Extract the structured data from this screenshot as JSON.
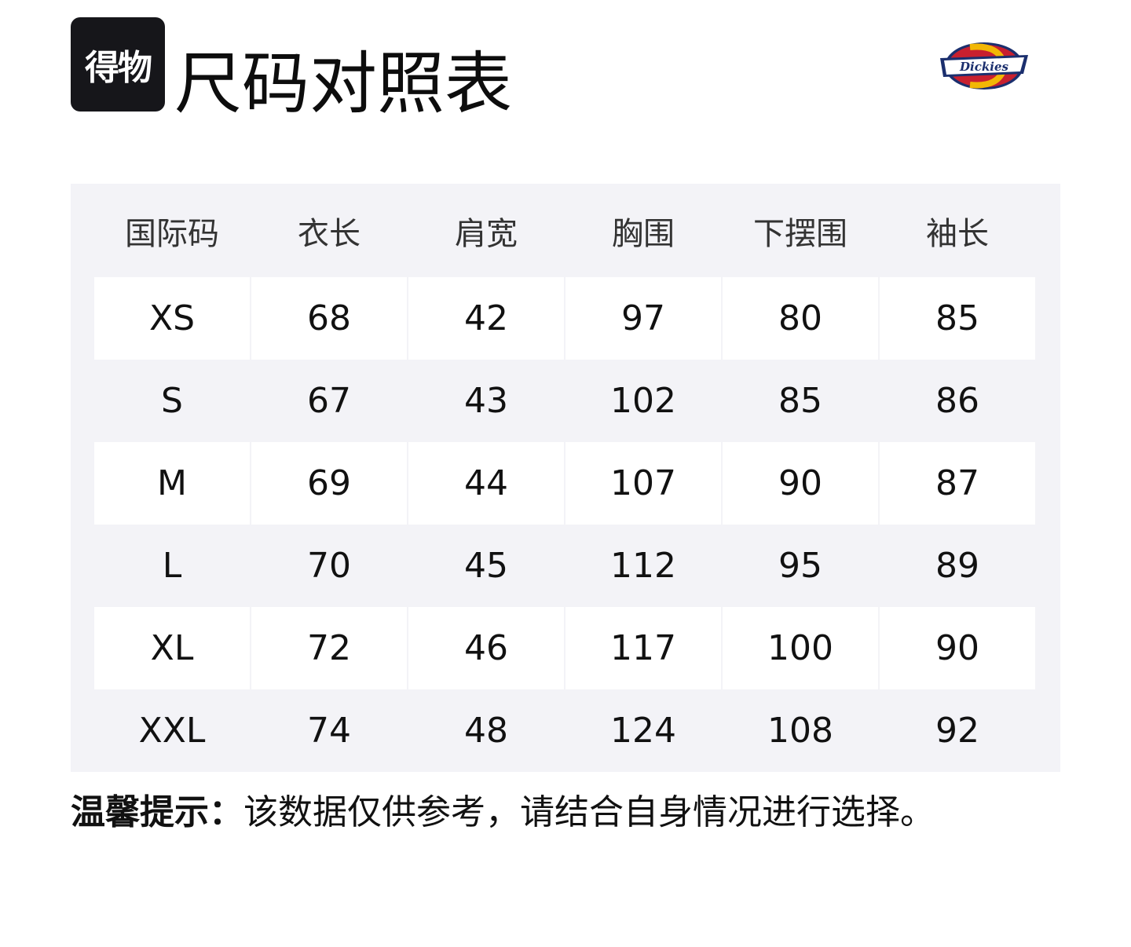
{
  "brand": {
    "app_logo_text": "得物",
    "title": "尺码对照表",
    "partner_logo_text": "Dickies"
  },
  "table": {
    "headers": [
      "国际码",
      "衣长",
      "肩宽",
      "胸围",
      "下摆围",
      "袖长"
    ],
    "rows": [
      [
        "XS",
        "68",
        "42",
        "97",
        "80",
        "85"
      ],
      [
        "S",
        "67",
        "43",
        "102",
        "85",
        "86"
      ],
      [
        "M",
        "69",
        "44",
        "107",
        "90",
        "87"
      ],
      [
        "L",
        "70",
        "45",
        "112",
        "95",
        "89"
      ],
      [
        "XL",
        "72",
        "46",
        "117",
        "100",
        "90"
      ],
      [
        "XXL",
        "74",
        "48",
        "124",
        "108",
        "92"
      ]
    ]
  },
  "note": {
    "label": "温馨提示：",
    "text": "该数据仅供参考，请结合自身情况进行选择。"
  },
  "colors": {
    "table_bg": "#f3f3f7",
    "logo_red": "#c8202f",
    "logo_navy": "#1b2f6e",
    "logo_yellow": "#f2b705"
  }
}
